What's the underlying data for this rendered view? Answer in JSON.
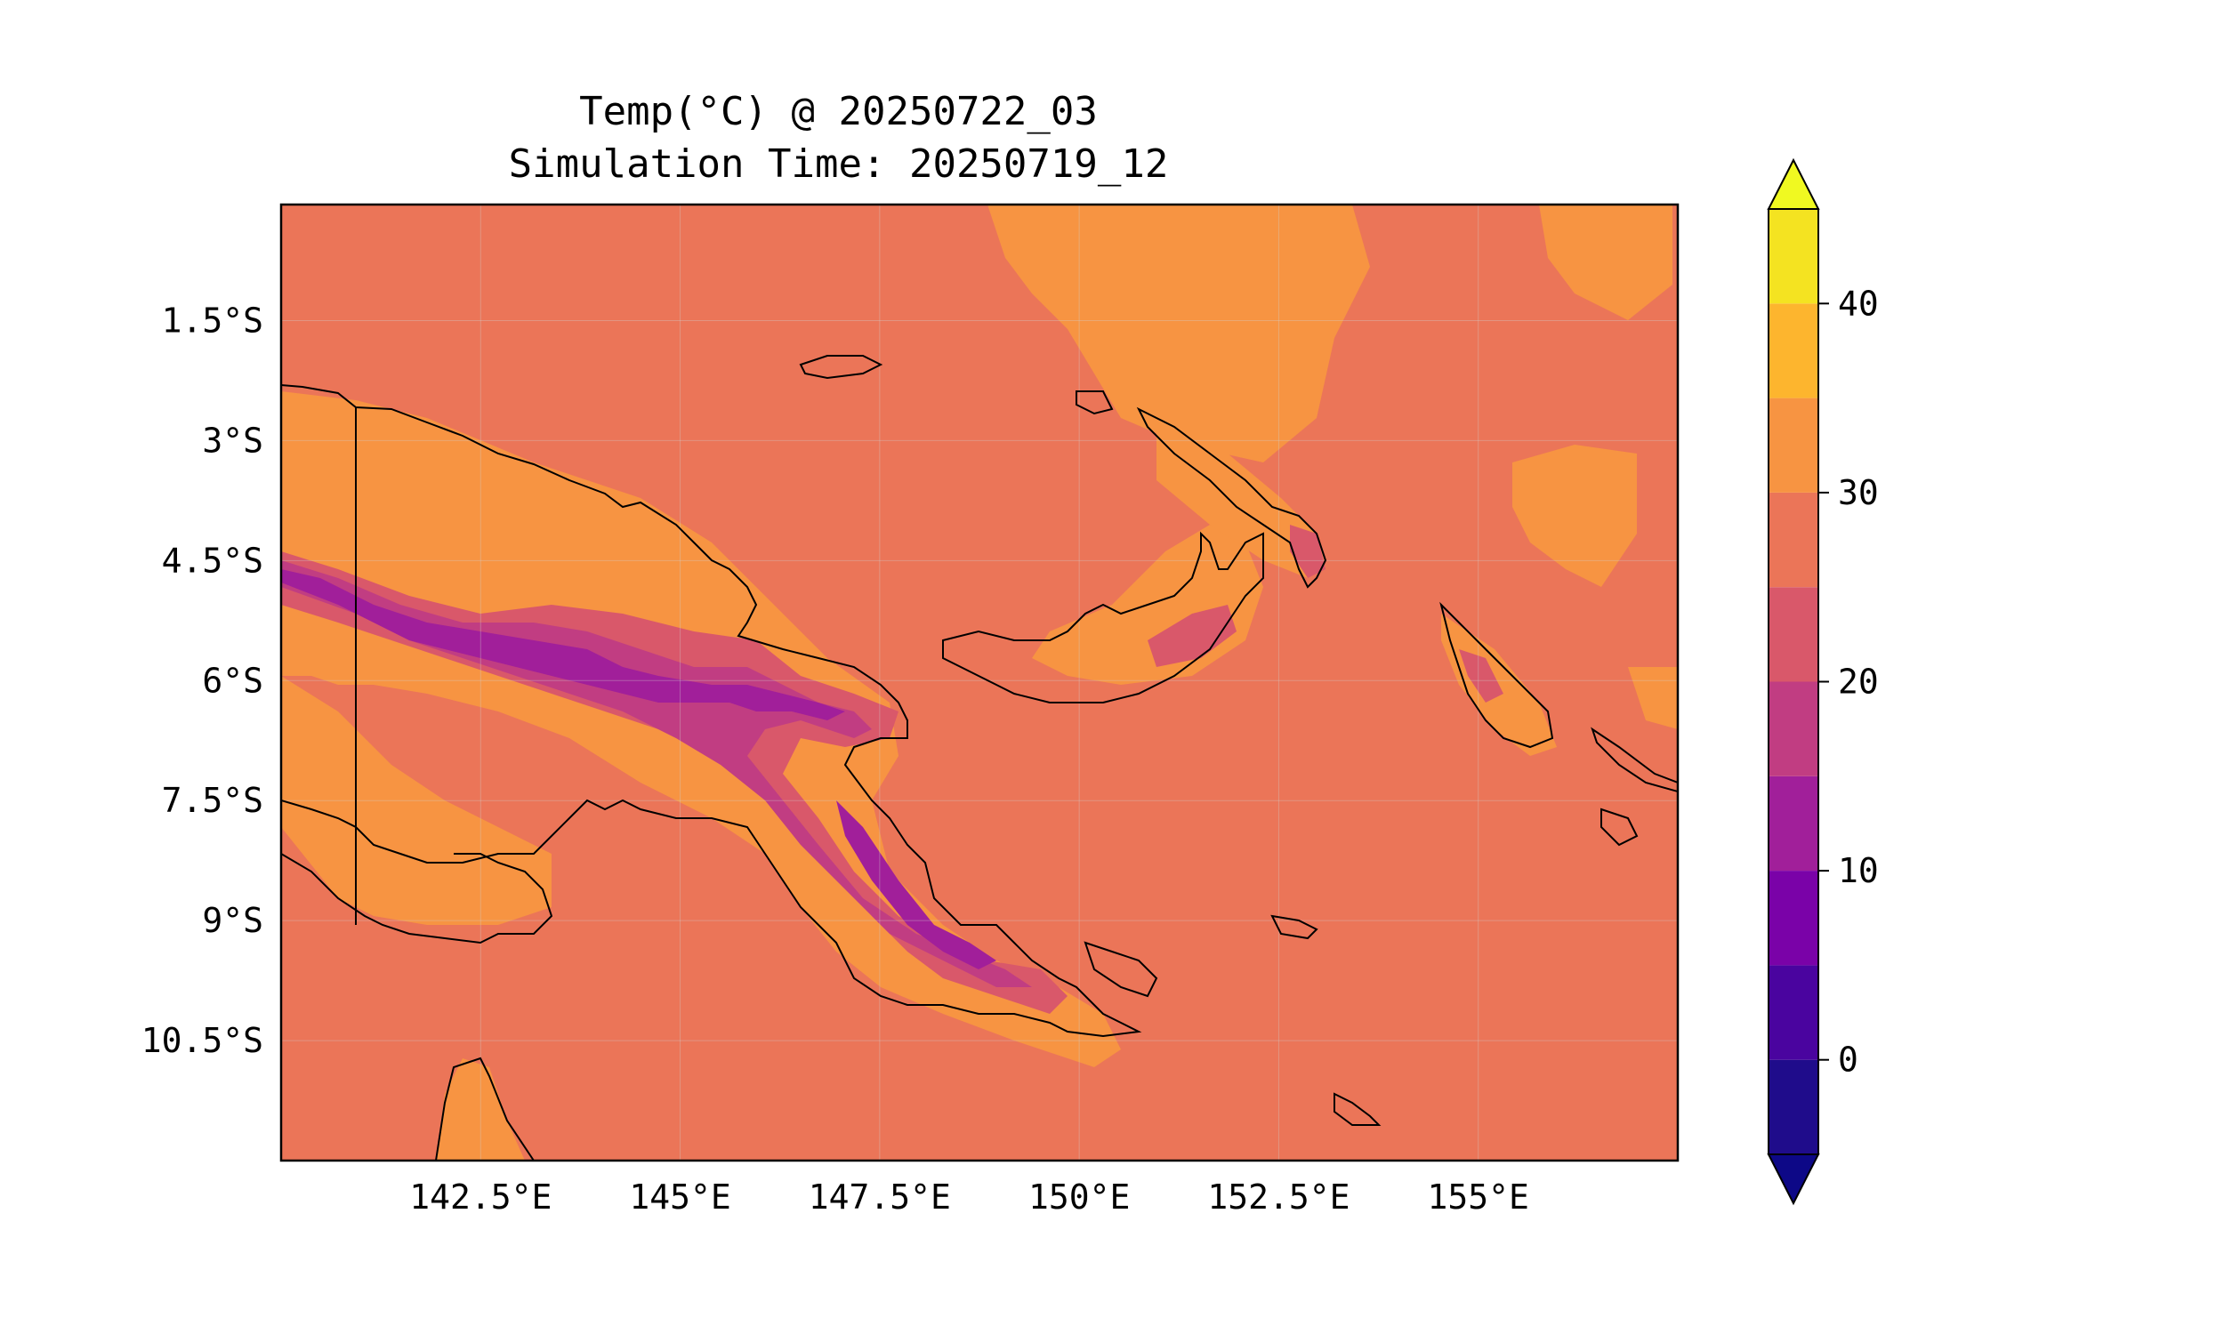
{
  "title": {
    "line1": "Temp(°C) @ 20250722_03",
    "line2": "Simulation Time: 20250719_12"
  },
  "map": {
    "lon_range": [
      140.0,
      157.5
    ],
    "lat_range": [
      -12.0,
      -0.05
    ],
    "lon_ticks": [
      {
        "value": 142.5,
        "label": "142.5°E"
      },
      {
        "value": 145.0,
        "label": "145°E"
      },
      {
        "value": 147.5,
        "label": "147.5°E"
      },
      {
        "value": 150.0,
        "label": "150°E"
      },
      {
        "value": 152.5,
        "label": "152.5°E"
      },
      {
        "value": 155.0,
        "label": "155°E"
      }
    ],
    "lat_ticks": [
      {
        "value": -1.5,
        "label": "1.5°S"
      },
      {
        "value": -3.0,
        "label": "3°S"
      },
      {
        "value": -4.5,
        "label": "4.5°S"
      },
      {
        "value": -6.0,
        "label": "6°S"
      },
      {
        "value": -7.5,
        "label": "7.5°S"
      },
      {
        "value": -9.0,
        "label": "9°S"
      },
      {
        "value": -10.5,
        "label": "10.5°S"
      }
    ],
    "gridlines": true,
    "ocean_color": "#eb7558",
    "coastline_color": "#000000",
    "icons": [
      "coastline-outline",
      "border-line"
    ]
  },
  "colorbar": {
    "levels": [
      -5,
      0,
      5,
      10,
      15,
      20,
      25,
      30,
      35,
      40,
      45
    ],
    "colors": [
      "#1f0c8b",
      "#4a049f",
      "#7a02a8",
      "#a11f9a",
      "#c13d82",
      "#d9586a",
      "#eb7558",
      "#f79442",
      "#fdb52e",
      "#f4e321"
    ],
    "under_color": "#0d0887",
    "over_color": "#f0f921",
    "extend": "both",
    "tick_labels": [
      {
        "value": 0,
        "label": "0"
      },
      {
        "value": 10,
        "label": "10"
      },
      {
        "value": 20,
        "label": "20"
      },
      {
        "value": 30,
        "label": "30"
      },
      {
        "value": 40,
        "label": "40"
      }
    ]
  }
}
